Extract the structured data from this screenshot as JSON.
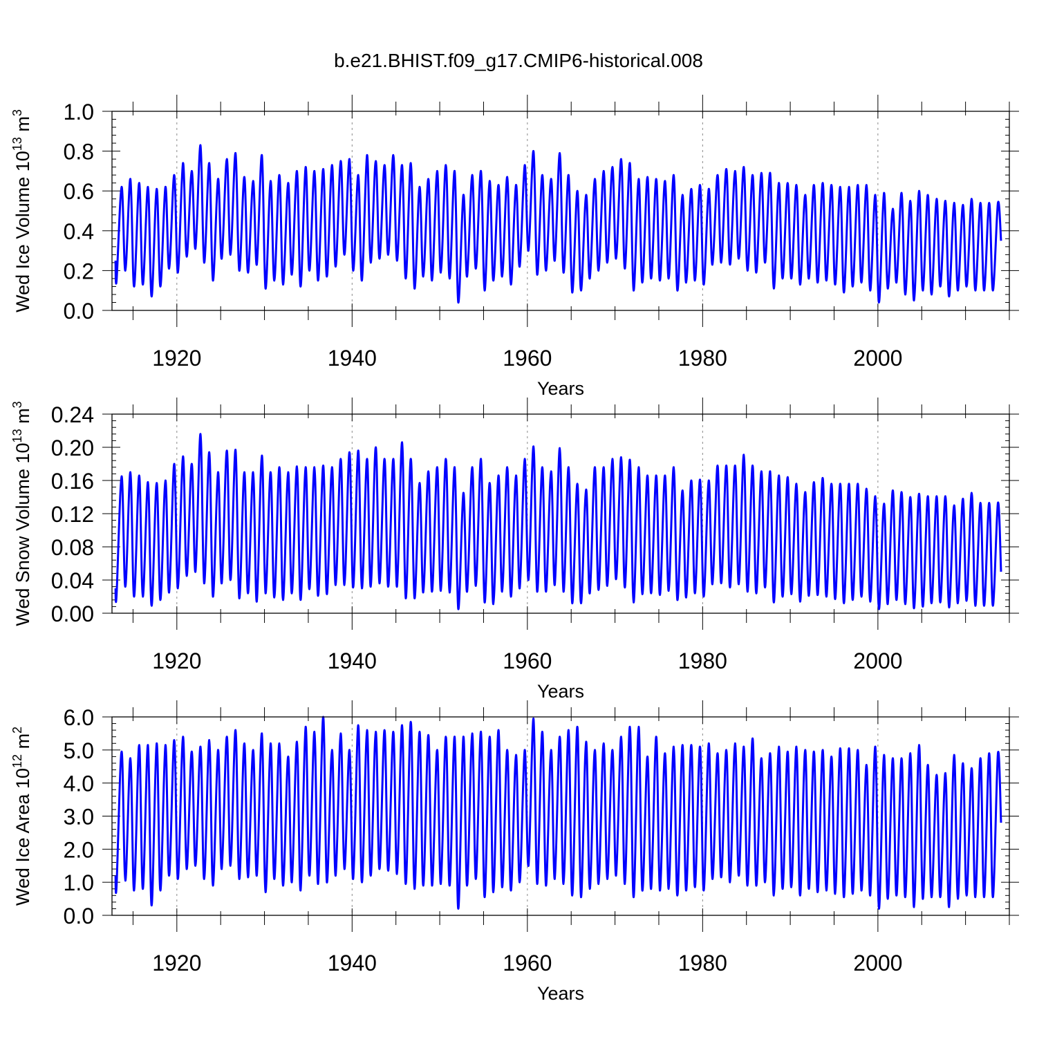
{
  "title": "b.e21.BHIST.f09_g17.CMIP6-historical.008",
  "colors": {
    "series": "#0000ff",
    "axes": "#000000",
    "grid": "#888888"
  },
  "chart_data": [
    {
      "type": "line",
      "ylabel": "Wed Ice Volume 10",
      "ylabel_exp": "13",
      "ylabel_unit": " m",
      "ylabel_unit_exp": "3",
      "xlabel": "Years",
      "xlim": [
        1912.6,
        2015
      ],
      "ylim": [
        0,
        1.0
      ],
      "xticks": [
        1920,
        1940,
        1960,
        1980,
        2000
      ],
      "xtick_labels": [
        "1920",
        "1940",
        "1960",
        "1980",
        "2000"
      ],
      "yticks": [
        0,
        0.2,
        0.4,
        0.6,
        0.8,
        1.0
      ],
      "ytick_labels": [
        "0.0",
        "0.2",
        "0.4",
        "0.6",
        "0.8",
        "1.0"
      ],
      "grid": "x-dashed",
      "series": [
        {
          "name": "Wed Ice Volume",
          "start_year": 1913,
          "first_value": 0.25,
          "last_value": 0.35,
          "annual_max": [
            0.62,
            0.66,
            0.64,
            0.62,
            0.61,
            0.62,
            0.68,
            0.74,
            0.7,
            0.83,
            0.74,
            0.66,
            0.76,
            0.79,
            0.67,
            0.65,
            0.78,
            0.65,
            0.68,
            0.64,
            0.7,
            0.72,
            0.7,
            0.71,
            0.73,
            0.75,
            0.76,
            0.68,
            0.78,
            0.75,
            0.73,
            0.78,
            0.73,
            0.74,
            0.62,
            0.66,
            0.7,
            0.73,
            0.7,
            0.58,
            0.68,
            0.7,
            0.65,
            0.63,
            0.67,
            0.63,
            0.73,
            0.8,
            0.68,
            0.66,
            0.79,
            0.68,
            0.6,
            0.58,
            0.66,
            0.7,
            0.72,
            0.76,
            0.74,
            0.66,
            0.67,
            0.66,
            0.65,
            0.68,
            0.58,
            0.61,
            0.63,
            0.61,
            0.68,
            0.71,
            0.7,
            0.72,
            0.68,
            0.69,
            0.69,
            0.64,
            0.64,
            0.63,
            0.58,
            0.63,
            0.64,
            0.63,
            0.62,
            0.62,
            0.63,
            0.63,
            0.58,
            0.59,
            0.51,
            0.59,
            0.55,
            0.6,
            0.58,
            0.56,
            0.55,
            0.54,
            0.53,
            0.56,
            0.54,
            0.54,
            0.54
          ],
          "annual_min": [
            0.15,
            0.2,
            0.12,
            0.13,
            0.07,
            0.12,
            0.21,
            0.19,
            0.27,
            0.31,
            0.24,
            0.15,
            0.26,
            0.28,
            0.2,
            0.19,
            0.23,
            0.11,
            0.15,
            0.13,
            0.18,
            0.12,
            0.2,
            0.15,
            0.17,
            0.22,
            0.28,
            0.2,
            0.15,
            0.24,
            0.26,
            0.28,
            0.25,
            0.16,
            0.11,
            0.17,
            0.15,
            0.19,
            0.16,
            0.04,
            0.17,
            0.21,
            0.1,
            0.15,
            0.17,
            0.13,
            0.22,
            0.3,
            0.18,
            0.2,
            0.25,
            0.19,
            0.09,
            0.1,
            0.16,
            0.2,
            0.24,
            0.26,
            0.21,
            0.1,
            0.14,
            0.16,
            0.15,
            0.16,
            0.1,
            0.14,
            0.15,
            0.13,
            0.23,
            0.24,
            0.23,
            0.26,
            0.2,
            0.19,
            0.24,
            0.11,
            0.16,
            0.16,
            0.13,
            0.16,
            0.14,
            0.15,
            0.13,
            0.09,
            0.12,
            0.14,
            0.1,
            0.04,
            0.11,
            0.14,
            0.08,
            0.05,
            0.1,
            0.08,
            0.12,
            0.07,
            0.1,
            0.12,
            0.1,
            0.1,
            0.1
          ]
        }
      ]
    },
    {
      "type": "line",
      "ylabel": "Wed Snow Volume 10",
      "ylabel_exp": "13",
      "ylabel_unit": " m",
      "ylabel_unit_exp": "3",
      "xlabel": "Years",
      "xlim": [
        1912.6,
        2015
      ],
      "ylim": [
        0,
        0.24
      ],
      "xticks": [
        1920,
        1940,
        1960,
        1980,
        2000
      ],
      "xtick_labels": [
        "1920",
        "1940",
        "1960",
        "1980",
        "2000"
      ],
      "yticks": [
        0,
        0.04,
        0.08,
        0.12,
        0.16,
        0.2,
        0.24
      ],
      "ytick_labels": [
        "0.00",
        "0.04",
        "0.08",
        "0.12",
        "0.16",
        "0.20",
        "0.24"
      ],
      "grid": "x-dashed",
      "series": [
        {
          "name": "Wed Snow Volume",
          "start_year": 1913,
          "first_value": 0.03,
          "last_value": 0.05,
          "annual_max": [
            0.165,
            0.17,
            0.166,
            0.158,
            0.157,
            0.16,
            0.18,
            0.189,
            0.18,
            0.216,
            0.194,
            0.17,
            0.196,
            0.197,
            0.17,
            0.17,
            0.19,
            0.17,
            0.176,
            0.17,
            0.177,
            0.176,
            0.176,
            0.178,
            0.176,
            0.186,
            0.194,
            0.196,
            0.186,
            0.2,
            0.186,
            0.186,
            0.206,
            0.186,
            0.157,
            0.171,
            0.176,
            0.186,
            0.176,
            0.145,
            0.176,
            0.186,
            0.157,
            0.166,
            0.176,
            0.166,
            0.186,
            0.201,
            0.176,
            0.171,
            0.199,
            0.176,
            0.156,
            0.149,
            0.176,
            0.176,
            0.186,
            0.188,
            0.185,
            0.176,
            0.166,
            0.166,
            0.166,
            0.176,
            0.148,
            0.16,
            0.161,
            0.16,
            0.178,
            0.178,
            0.178,
            0.191,
            0.178,
            0.171,
            0.171,
            0.166,
            0.164,
            0.156,
            0.146,
            0.158,
            0.163,
            0.156,
            0.156,
            0.156,
            0.156,
            0.15,
            0.141,
            0.132,
            0.148,
            0.146,
            0.14,
            0.144,
            0.141,
            0.141,
            0.141,
            0.13,
            0.138,
            0.145,
            0.133,
            0.133,
            0.133
          ],
          "annual_min": [
            0.022,
            0.032,
            0.02,
            0.02,
            0.009,
            0.016,
            0.025,
            0.03,
            0.045,
            0.05,
            0.036,
            0.02,
            0.036,
            0.04,
            0.018,
            0.024,
            0.014,
            0.024,
            0.019,
            0.016,
            0.024,
            0.016,
            0.029,
            0.021,
            0.023,
            0.034,
            0.034,
            0.031,
            0.03,
            0.032,
            0.036,
            0.032,
            0.032,
            0.018,
            0.018,
            0.025,
            0.026,
            0.027,
            0.025,
            0.005,
            0.026,
            0.033,
            0.013,
            0.011,
            0.026,
            0.02,
            0.03,
            0.04,
            0.026,
            0.026,
            0.034,
            0.026,
            0.012,
            0.012,
            0.024,
            0.028,
            0.033,
            0.041,
            0.031,
            0.013,
            0.023,
            0.024,
            0.022,
            0.027,
            0.016,
            0.019,
            0.024,
            0.02,
            0.035,
            0.036,
            0.031,
            0.035,
            0.026,
            0.024,
            0.031,
            0.013,
            0.02,
            0.023,
            0.014,
            0.021,
            0.022,
            0.02,
            0.017,
            0.012,
            0.016,
            0.02,
            0.014,
            0.005,
            0.011,
            0.016,
            0.011,
            0.006,
            0.008,
            0.012,
            0.013,
            0.007,
            0.012,
            0.015,
            0.009,
            0.009,
            0.009
          ]
        }
      ]
    },
    {
      "type": "line",
      "ylabel": "Wed Ice Area 10",
      "ylabel_exp": "12",
      "ylabel_unit": " m",
      "ylabel_unit_exp": "2",
      "xlabel": "Years",
      "xlim": [
        1912.6,
        2015
      ],
      "ylim": [
        0,
        6.0
      ],
      "xticks": [
        1920,
        1940,
        1960,
        1980,
        2000
      ],
      "xtick_labels": [
        "1920",
        "1940",
        "1960",
        "1980",
        "2000"
      ],
      "yticks": [
        0,
        1.0,
        2.0,
        3.0,
        4.0,
        5.0,
        6.0
      ],
      "ytick_labels": [
        "0.0",
        "1.0",
        "2.0",
        "3.0",
        "4.0",
        "5.0",
        "6.0"
      ],
      "grid": "x-dashed",
      "series": [
        {
          "name": "Wed Ice Area",
          "start_year": 1913,
          "first_value": 1.2,
          "last_value": 2.8,
          "annual_max": [
            4.95,
            4.75,
            5.15,
            5.15,
            5.2,
            5.15,
            5.3,
            5.4,
            4.95,
            5.1,
            5.3,
            5.0,
            5.4,
            5.6,
            5.2,
            5.0,
            5.5,
            5.2,
            5.2,
            4.8,
            5.25,
            5.7,
            5.55,
            6.0,
            5.0,
            5.5,
            5.0,
            5.75,
            5.6,
            5.55,
            5.6,
            5.55,
            5.75,
            5.85,
            5.55,
            5.45,
            5.0,
            5.4,
            5.4,
            5.4,
            5.5,
            5.55,
            5.4,
            5.6,
            5.0,
            4.85,
            5.0,
            5.95,
            5.55,
            5.0,
            5.4,
            5.6,
            5.7,
            5.25,
            5.0,
            5.2,
            5.0,
            5.4,
            5.7,
            5.7,
            4.8,
            5.4,
            4.9,
            5.1,
            5.15,
            5.15,
            5.1,
            5.2,
            4.9,
            5.0,
            5.2,
            5.1,
            5.35,
            4.75,
            4.9,
            5.1,
            4.95,
            5.1,
            5.0,
            4.95,
            5.0,
            4.8,
            5.05,
            5.05,
            5.0,
            4.55,
            5.1,
            4.85,
            4.75,
            4.75,
            4.9,
            5.15,
            4.55,
            4.25,
            4.3,
            4.85,
            4.6,
            4.45,
            4.75,
            4.9,
            4.9
          ],
          "annual_min": [
            0.9,
            1.05,
            0.75,
            0.8,
            0.3,
            0.75,
            1.2,
            1.1,
            1.4,
            1.5,
            1.1,
            0.9,
            1.4,
            1.5,
            1.1,
            1.15,
            1.2,
            0.7,
            1.1,
            0.9,
            1.0,
            0.75,
            1.2,
            0.95,
            1.0,
            1.2,
            1.4,
            1.1,
            1.0,
            1.2,
            1.4,
            1.35,
            1.25,
            0.95,
            0.8,
            0.9,
            0.9,
            0.95,
            0.9,
            0.2,
            0.9,
            1.1,
            0.55,
            0.7,
            0.85,
            0.75,
            1.0,
            1.5,
            0.95,
            0.9,
            1.1,
            0.95,
            0.6,
            0.55,
            0.8,
            0.95,
            1.1,
            1.2,
            0.95,
            0.55,
            0.75,
            0.8,
            0.75,
            0.8,
            0.6,
            0.75,
            0.85,
            0.75,
            1.1,
            1.15,
            1.0,
            1.2,
            0.9,
            0.9,
            1.0,
            0.6,
            0.8,
            0.85,
            0.6,
            0.8,
            0.7,
            0.75,
            0.65,
            0.55,
            0.65,
            0.75,
            0.6,
            0.2,
            0.5,
            0.6,
            0.55,
            0.25,
            0.5,
            0.55,
            0.55,
            0.25,
            0.5,
            0.6,
            0.55,
            0.55,
            0.55
          ]
        }
      ]
    }
  ]
}
